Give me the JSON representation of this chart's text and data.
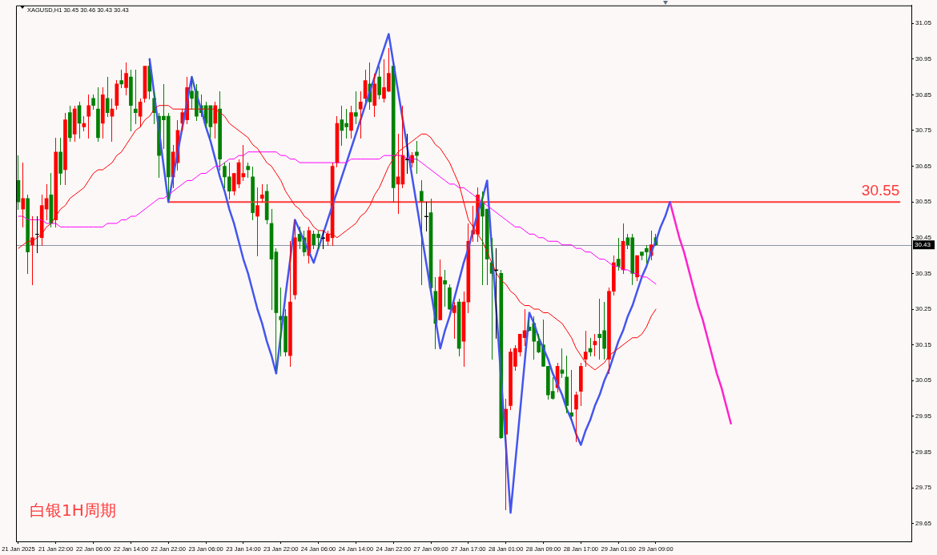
{
  "chart_data": {
    "type": "candlestick",
    "title": "XAGUSD,H1 30.45 30.46 30.43 30.43",
    "annotations": [
      "白银1H周期"
    ],
    "categories": [
      "21 Jan 2025",
      null,
      null,
      null,
      null,
      null,
      null,
      null,
      "21 Jan 22:00",
      null,
      null,
      null,
      null,
      null,
      null,
      null,
      "22 Jan 06:00",
      null,
      null,
      null,
      null,
      null,
      null,
      null,
      "22 Jan 14:00",
      null,
      null,
      null,
      null,
      null,
      null,
      null,
      "22 Jan 22:00",
      null,
      null,
      null,
      null,
      null,
      null,
      null,
      "23 Jan 06:00",
      null,
      null,
      null,
      null,
      null,
      null,
      null,
      "23 Jan 14:00",
      null,
      null,
      null,
      null,
      null,
      null,
      null,
      "23 Jan 22:00",
      null,
      null,
      null,
      null,
      null,
      null,
      null,
      "24 Jan 06:00",
      null,
      null,
      null,
      null,
      null,
      null,
      null,
      "24 Jan 14:00",
      null,
      null,
      null,
      null,
      null,
      null,
      null,
      "24 Jan 22:00",
      null,
      null,
      null,
      null,
      null,
      null,
      null,
      "27 Jan 09:00",
      null,
      null,
      null,
      null,
      null,
      null,
      null,
      "27 Jan 17:00",
      null,
      null,
      null,
      null,
      null,
      null,
      null,
      "28 Jan 01:00",
      null,
      null,
      null,
      null,
      null,
      null,
      null,
      "28 Jan 09:00",
      null,
      null,
      null,
      null,
      null,
      null,
      null,
      "28 Jan 17:00",
      null,
      null,
      null,
      null,
      null,
      null,
      null,
      "29 Jan 01:00",
      null,
      null,
      null,
      null,
      null,
      null,
      null,
      "29 Jan 09:00",
      null,
      null,
      null,
      null,
      null,
      null,
      null,
      null,
      null,
      null,
      null,
      null,
      null,
      null,
      null,
      null,
      null,
      null,
      null,
      null,
      null,
      null,
      null,
      null,
      null,
      null,
      null,
      null,
      null,
      null,
      null,
      null,
      null,
      null,
      null,
      null,
      null,
      null,
      null,
      null,
      null,
      null,
      null,
      null,
      null,
      null,
      null,
      null,
      null,
      null,
      null,
      null,
      null,
      null
    ],
    "ohlc": [
      [
        30.61,
        30.68,
        30.53,
        30.55
      ],
      [
        30.53,
        30.66,
        30.48,
        30.56
      ],
      [
        30.56,
        30.57,
        30.35,
        30.41
      ],
      [
        30.43,
        30.51,
        30.32,
        30.45
      ],
      [
        30.46,
        30.51,
        30.41,
        30.46
      ],
      [
        30.45,
        30.57,
        30.43,
        30.54
      ],
      [
        30.53,
        30.6,
        30.5,
        30.56
      ],
      [
        30.57,
        30.63,
        30.48,
        30.49
      ],
      [
        30.5,
        30.73,
        30.48,
        30.69
      ],
      [
        30.69,
        30.73,
        30.6,
        30.63
      ],
      [
        30.64,
        30.8,
        30.6,
        30.78
      ],
      [
        30.8,
        30.82,
        30.72,
        30.73
      ],
      [
        30.74,
        30.82,
        30.72,
        30.81
      ],
      [
        30.82,
        30.83,
        30.73,
        30.77
      ],
      [
        30.76,
        30.79,
        30.75,
        30.77
      ],
      [
        30.79,
        30.85,
        30.73,
        30.82
      ],
      [
        30.84,
        30.85,
        30.81,
        30.82
      ],
      [
        30.81,
        30.87,
        30.72,
        30.73
      ],
      [
        30.77,
        30.87,
        30.73,
        30.85
      ],
      [
        30.84,
        30.9,
        30.79,
        30.8
      ],
      [
        30.79,
        30.84,
        30.72,
        30.81
      ],
      [
        30.82,
        30.89,
        30.81,
        30.88
      ],
      [
        30.89,
        30.92,
        30.87,
        30.88
      ],
      [
        30.87,
        30.94,
        30.85,
        30.91
      ],
      [
        30.9,
        30.92,
        30.75,
        30.82
      ],
      [
        30.81,
        30.92,
        30.77,
        30.8
      ],
      [
        30.79,
        30.84,
        30.76,
        30.83
      ],
      [
        30.84,
        30.93,
        30.83,
        30.93
      ],
      [
        30.93,
        30.95,
        30.84,
        30.86
      ],
      [
        30.84,
        30.86,
        30.77,
        30.8
      ],
      [
        30.79,
        30.8,
        30.62,
        30.68
      ],
      [
        30.79,
        30.88,
        30.7,
        30.78
      ],
      [
        30.79,
        30.8,
        30.56,
        30.62
      ],
      [
        30.62,
        30.71,
        30.59,
        30.69
      ],
      [
        30.66,
        30.78,
        30.64,
        30.75
      ],
      [
        30.77,
        30.81,
        30.75,
        30.8
      ],
      [
        30.78,
        30.9,
        30.77,
        30.87
      ],
      [
        30.86,
        30.9,
        30.81,
        30.84
      ],
      [
        30.86,
        30.88,
        30.78,
        30.79
      ],
      [
        30.82,
        30.85,
        30.79,
        30.8
      ],
      [
        30.82,
        30.83,
        30.76,
        30.77
      ],
      [
        30.82,
        30.82,
        30.73,
        30.76
      ],
      [
        30.77,
        30.83,
        30.73,
        30.82
      ],
      [
        30.81,
        30.86,
        30.64,
        30.67
      ],
      [
        30.65,
        30.66,
        30.59,
        30.62
      ],
      [
        30.62,
        30.66,
        30.56,
        30.58
      ],
      [
        30.58,
        30.63,
        30.57,
        30.63
      ],
      [
        30.6,
        30.67,
        30.59,
        30.66
      ],
      [
        30.62,
        30.71,
        30.61,
        30.63
      ],
      [
        30.65,
        30.66,
        30.62,
        30.64
      ],
      [
        30.62,
        30.65,
        30.5,
        30.52
      ],
      [
        30.51,
        30.59,
        30.4,
        30.54
      ],
      [
        30.56,
        30.6,
        30.55,
        30.57
      ],
      [
        30.58,
        30.6,
        30.49,
        30.5
      ],
      [
        30.49,
        30.53,
        30.25,
        30.39
      ],
      [
        30.41,
        30.42,
        30.08,
        30.24
      ],
      [
        30.23,
        30.31,
        30.12,
        30.22
      ],
      [
        30.23,
        30.25,
        30.12,
        30.13
      ],
      [
        30.12,
        30.44,
        30.09,
        30.27
      ],
      [
        30.29,
        30.5,
        30.28,
        30.45
      ],
      [
        30.46,
        30.48,
        30.42,
        30.44
      ],
      [
        30.45,
        30.47,
        30.4,
        30.41
      ],
      [
        30.4,
        30.48,
        30.38,
        30.47
      ],
      [
        30.46,
        30.47,
        30.42,
        30.43
      ],
      [
        30.46,
        30.47,
        30.42,
        30.45
      ],
      [
        30.45,
        30.47,
        30.42,
        30.45
      ],
      [
        30.44,
        30.47,
        30.43,
        30.46
      ],
      [
        30.45,
        30.66,
        30.43,
        30.65
      ],
      [
        30.66,
        30.79,
        30.65,
        30.77
      ],
      [
        30.78,
        30.82,
        30.71,
        30.75
      ],
      [
        30.77,
        30.81,
        30.73,
        30.76
      ],
      [
        30.75,
        30.82,
        30.73,
        30.8
      ],
      [
        30.8,
        30.86,
        30.77,
        30.79
      ],
      [
        30.81,
        30.86,
        30.73,
        30.83
      ],
      [
        30.84,
        30.92,
        30.83,
        30.89
      ],
      [
        30.88,
        30.94,
        30.81,
        30.83
      ],
      [
        30.82,
        30.91,
        30.79,
        30.88
      ],
      [
        30.9,
        30.93,
        30.84,
        30.85
      ],
      [
        30.84,
        30.95,
        30.83,
        30.87
      ],
      [
        30.86,
        30.98,
        30.86,
        30.91
      ],
      [
        30.93,
        30.94,
        30.55,
        30.59
      ],
      [
        30.6,
        30.74,
        30.52,
        30.62
      ],
      [
        30.6,
        30.82,
        30.59,
        30.68
      ],
      [
        30.67,
        30.74,
        30.63,
        30.67
      ],
      [
        30.66,
        30.69,
        30.65,
        30.68
      ],
      [
        30.69,
        30.72,
        30.63,
        30.68
      ],
      [
        30.58,
        30.61,
        30.32,
        30.55
      ],
      [
        30.51,
        30.55,
        30.47,
        30.51
      ],
      [
        30.52,
        30.56,
        30.3,
        30.31
      ],
      [
        30.3,
        30.34,
        30.14,
        30.21
      ],
      [
        30.22,
        30.39,
        30.22,
        30.34
      ],
      [
        30.33,
        30.36,
        30.26,
        30.32
      ],
      [
        30.31,
        30.32,
        30.25,
        30.25
      ],
      [
        30.24,
        30.27,
        30.17,
        30.26
      ],
      [
        30.27,
        30.28,
        30.12,
        30.14
      ],
      [
        30.16,
        30.3,
        30.09,
        30.27
      ],
      [
        30.27,
        30.49,
        30.24,
        30.44
      ],
      [
        30.46,
        30.54,
        30.44,
        30.47
      ],
      [
        30.46,
        30.59,
        30.44,
        30.57
      ],
      [
        30.55,
        30.58,
        30.32,
        30.51
      ],
      [
        30.53,
        30.53,
        30.32,
        30.39
      ],
      [
        30.38,
        30.45,
        30.11,
        30.35
      ],
      [
        30.36,
        30.42,
        30.17,
        30.36
      ],
      [
        30.35,
        30.36,
        29.89,
        29.89
      ],
      [
        29.9,
        30.0,
        29.69,
        29.97
      ],
      [
        29.98,
        30.14,
        29.97,
        30.13
      ],
      [
        30.09,
        30.15,
        30.08,
        30.14
      ],
      [
        30.13,
        30.18,
        30.12,
        30.18
      ],
      [
        30.17,
        30.25,
        30.15,
        30.19
      ],
      [
        30.2,
        30.22,
        30.19,
        30.19
      ],
      [
        30.21,
        30.23,
        30.11,
        30.16
      ],
      [
        30.16,
        30.18,
        30.13,
        30.13
      ],
      [
        30.15,
        30.22,
        30.09,
        30.09
      ],
      [
        30.09,
        30.09,
        30.0,
        30.01
      ],
      [
        30.02,
        30.06,
        30.0,
        30.0
      ],
      [
        30.03,
        30.1,
        30.02,
        30.09
      ],
      [
        30.08,
        30.14,
        30.06,
        30.07
      ],
      [
        30.06,
        30.12,
        29.96,
        29.98
      ],
      [
        29.96,
        30.08,
        29.94,
        29.95
      ],
      [
        29.97,
        30.02,
        29.88,
        30.01
      ],
      [
        30.02,
        30.1,
        29.98,
        30.09
      ],
      [
        30.11,
        30.19,
        30.09,
        30.13
      ],
      [
        30.14,
        30.17,
        30.12,
        30.13
      ],
      [
        30.15,
        30.18,
        30.12,
        30.16
      ],
      [
        30.18,
        30.28,
        30.11,
        30.17
      ],
      [
        30.19,
        30.27,
        30.11,
        30.14
      ],
      [
        30.11,
        30.31,
        30.07,
        30.3
      ],
      [
        30.3,
        30.4,
        30.29,
        30.38
      ],
      [
        30.39,
        30.45,
        30.36,
        30.37
      ],
      [
        30.36,
        30.49,
        30.35,
        30.44
      ],
      [
        30.45,
        30.46,
        30.42,
        30.43
      ],
      [
        30.45,
        30.46,
        30.32,
        30.35
      ],
      [
        30.34,
        30.4,
        30.33,
        30.4
      ],
      [
        30.41,
        30.41,
        30.39,
        30.4
      ],
      [
        30.42,
        30.43,
        30.38,
        30.41
      ],
      [
        30.4,
        30.47,
        30.39,
        30.43
      ],
      [
        30.45,
        30.46,
        30.43,
        30.43
      ],
      null,
      null,
      null,
      null,
      null,
      null,
      null,
      null,
      null,
      null,
      null,
      null,
      null,
      null,
      null,
      null,
      null,
      null,
      null,
      null,
      null,
      null,
      null,
      null,
      null,
      null,
      null,
      null,
      null,
      null,
      null,
      null,
      null,
      null,
      null,
      null,
      null,
      null,
      null,
      null,
      null,
      null,
      null,
      null,
      null,
      null,
      null,
      null,
      null,
      null,
      null,
      null,
      null,
      null
    ],
    "colors": [
      "#008000",
      "#ff0000",
      "#008000",
      "#ff0000",
      "#000000",
      "#ff0000",
      "#ff0000",
      "#008000",
      "#ff0000",
      "#008000",
      "#ff0000",
      "#008000",
      "#ff0000",
      "#008000",
      "#ff0000",
      "#ff0000",
      "#008000",
      "#008000",
      "#ff0000",
      "#008000",
      "#ff0000",
      "#ff0000",
      "#008000",
      "#ff0000",
      "#008000",
      "#008000",
      "#ff0000",
      "#ff0000",
      "#008000",
      "#008000",
      "#008000",
      "#008000",
      "#008000",
      "#ff0000",
      "#ff0000",
      "#ff0000",
      "#ff0000",
      "#008000",
      "#008000",
      "#008000",
      "#008000",
      "#008000",
      "#ff0000",
      "#008000",
      "#008000",
      "#008000",
      "#ff0000",
      "#ff0000",
      "#ff0000",
      "#008000",
      "#008000",
      "#ff0000",
      "#ff0000",
      "#008000",
      "#008000",
      "#008000",
      "#008000",
      "#008000",
      "#ff0000",
      "#ff0000",
      "#008000",
      "#008000",
      "#ff0000",
      "#008000",
      "#008000",
      "#000000",
      "#ff0000",
      "#ff0000",
      "#ff0000",
      "#008000",
      "#008000",
      "#ff0000",
      "#008000",
      "#ff0000",
      "#ff0000",
      "#008000",
      "#ff0000",
      "#008000",
      "#ff0000",
      "#ff0000",
      "#008000",
      "#ff0000",
      "#ff0000",
      "#000000",
      "#ff0000",
      "#008000",
      "#008000",
      "#000000",
      "#008000",
      "#008000",
      "#ff0000",
      "#008000",
      "#008000",
      "#ff0000",
      "#008000",
      "#ff0000",
      "#ff0000",
      "#ff0000",
      "#ff0000",
      "#008000",
      "#008000",
      "#008000",
      "#000000",
      "#008000",
      "#ff0000",
      "#ff0000",
      "#ff0000",
      "#ff0000",
      "#ff0000",
      "#008000",
      "#008000",
      "#008000",
      "#008000",
      "#008000",
      "#008000",
      "#ff0000",
      "#008000",
      "#008000",
      "#008000",
      "#ff0000",
      "#ff0000",
      "#ff0000",
      "#008000",
      "#ff0000",
      "#008000",
      "#008000",
      "#ff0000",
      "#ff0000",
      "#008000",
      "#ff0000",
      "#008000",
      "#008000",
      "#ff0000",
      "#008000",
      "#008000",
      "#ff0000",
      "#008000",
      null,
      null,
      null,
      null,
      null,
      null,
      null,
      null,
      null,
      null,
      null,
      null,
      null,
      null,
      null,
      null,
      null,
      null,
      null,
      null,
      null,
      null,
      null,
      null,
      null,
      null,
      null,
      null,
      null,
      null,
      null,
      null,
      null,
      null,
      null,
      null,
      null,
      null,
      null,
      null,
      null,
      null,
      null,
      null,
      null,
      null,
      null,
      null,
      null,
      null,
      null,
      null,
      null,
      null
    ],
    "ylim": [
      29.6,
      31.1
    ],
    "yticks": [
      29.65,
      29.75,
      29.85,
      29.95,
      30.05,
      30.15,
      30.25,
      30.35,
      30.45,
      30.55,
      30.65,
      30.75,
      30.85,
      30.95,
      31.05
    ],
    "ref_lines": [
      {
        "axis": "y",
        "value": 30.43,
        "label": "30.43",
        "color": "#8a96a3"
      }
    ],
    "series": [
      {
        "type": "line",
        "color": "#ff0000",
        "values": [
          30.42,
          30.43,
          30.44,
          30.44,
          30.45,
          30.46,
          30.48,
          30.49,
          30.51,
          30.53,
          30.54,
          30.56,
          30.57,
          30.58,
          30.59,
          30.61,
          30.63,
          30.64,
          30.64,
          30.65,
          30.66,
          30.68,
          30.69,
          30.71,
          30.73,
          30.75,
          30.76,
          30.78,
          30.79,
          30.81,
          30.82,
          30.82,
          30.82,
          30.81,
          30.81,
          30.81,
          30.81,
          30.81,
          30.81,
          30.81,
          30.81,
          30.81,
          30.81,
          30.8,
          30.79,
          30.77,
          30.76,
          30.75,
          30.74,
          30.73,
          30.71,
          30.7,
          30.68,
          30.66,
          30.65,
          30.63,
          30.61,
          30.58,
          30.56,
          30.54,
          30.53,
          30.51,
          30.5,
          30.48,
          30.47,
          30.47,
          30.46,
          30.46,
          30.45,
          30.46,
          30.47,
          30.48,
          30.49,
          30.51,
          30.52,
          30.54,
          30.57,
          30.59,
          30.62,
          30.65,
          30.67,
          30.69,
          30.7,
          30.71,
          30.72,
          30.73,
          30.74,
          30.74,
          30.73,
          30.71,
          30.7,
          30.68,
          30.66,
          30.63,
          30.6,
          30.55,
          30.5,
          30.48,
          30.46,
          30.44,
          30.41,
          30.38,
          30.35,
          30.33,
          30.32,
          30.3,
          30.29,
          30.27,
          30.26,
          30.26,
          30.25,
          30.25,
          30.24,
          30.24,
          30.23,
          30.22,
          30.21,
          30.19,
          30.17,
          30.14,
          30.12,
          30.1,
          30.09,
          30.08,
          30.09,
          30.1,
          30.12,
          30.13,
          30.14,
          30.15,
          30.16,
          30.17,
          30.17,
          30.18,
          30.2,
          30.23,
          30.25,
          null,
          null,
          null,
          null,
          null,
          null,
          null,
          null,
          null,
          null,
          null,
          null,
          null,
          null,
          null,
          null,
          null,
          null,
          null,
          null,
          null,
          null,
          null,
          null,
          null,
          null,
          null,
          null,
          null,
          null,
          null,
          null,
          null,
          null,
          null,
          null,
          null,
          null,
          null,
          null,
          null,
          null,
          null,
          null,
          null,
          null,
          null,
          null,
          null,
          null,
          null,
          null,
          null,
          null
        ]
      },
      {
        "type": "line",
        "color": "#ff00ff",
        "values": [
          30.51,
          30.51,
          30.5,
          30.5,
          30.5,
          30.5,
          30.49,
          30.49,
          30.49,
          30.48,
          30.48,
          30.48,
          30.48,
          30.48,
          30.48,
          30.48,
          30.48,
          30.48,
          30.48,
          30.49,
          30.49,
          30.49,
          30.5,
          30.5,
          30.51,
          30.51,
          30.52,
          30.53,
          30.54,
          30.55,
          30.56,
          30.56,
          30.57,
          30.58,
          30.59,
          30.6,
          30.61,
          30.61,
          30.62,
          30.63,
          30.63,
          30.64,
          30.65,
          30.65,
          30.66,
          30.67,
          30.67,
          30.68,
          30.68,
          30.69,
          30.69,
          30.69,
          30.69,
          30.69,
          30.69,
          30.69,
          30.68,
          30.68,
          30.67,
          30.67,
          30.66,
          30.66,
          30.66,
          30.66,
          30.66,
          30.66,
          30.66,
          30.66,
          30.66,
          30.66,
          30.66,
          30.67,
          30.67,
          30.67,
          30.67,
          30.67,
          30.67,
          30.67,
          30.68,
          30.68,
          30.68,
          30.68,
          30.68,
          30.67,
          30.67,
          30.67,
          30.66,
          30.65,
          30.64,
          30.63,
          30.62,
          30.61,
          30.6,
          30.6,
          30.59,
          30.59,
          30.58,
          30.57,
          30.56,
          30.55,
          30.54,
          30.53,
          30.52,
          30.51,
          30.5,
          30.49,
          30.48,
          30.48,
          30.47,
          30.46,
          30.46,
          30.45,
          30.45,
          30.44,
          30.44,
          30.44,
          30.43,
          30.43,
          30.43,
          30.42,
          30.42,
          30.41,
          30.41,
          30.4,
          30.39,
          30.39,
          30.38,
          30.37,
          30.37,
          30.36,
          30.36,
          30.35,
          30.35,
          30.34,
          30.34,
          30.33,
          30.32,
          null,
          null,
          null,
          null,
          null,
          null,
          null,
          null,
          null,
          null,
          null,
          null,
          null,
          null,
          null,
          null,
          null,
          null,
          null,
          null,
          null,
          null,
          null,
          null,
          null,
          null,
          null,
          null,
          null,
          null,
          null,
          null,
          null,
          null,
          null,
          null,
          null,
          null,
          null,
          null,
          null,
          null,
          null,
          null,
          null,
          null,
          null,
          null,
          null,
          null,
          null,
          null,
          null,
          null
        ]
      },
      {
        "type": "line",
        "color": "#4455ee",
        "values": [
          null,
          null,
          null,
          null,
          null,
          null,
          null,
          null,
          null,
          null,
          null,
          null,
          null,
          null,
          null,
          null,
          null,
          null,
          null,
          null,
          null,
          null,
          null,
          null,
          null,
          null,
          null,
          null,
          30.95,
          30.85,
          30.75,
          30.65,
          30.55,
          30.62,
          30.69,
          30.76,
          30.83,
          30.9,
          30.85,
          30.81,
          30.76,
          30.72,
          30.67,
          30.62,
          30.58,
          30.53,
          30.49,
          30.44,
          30.39,
          30.35,
          30.3,
          30.25,
          30.21,
          30.16,
          30.12,
          30.07,
          30.18,
          30.29,
          30.39,
          30.5,
          30.47,
          30.44,
          30.41,
          30.38,
          30.42,
          30.46,
          30.5,
          30.54,
          30.58,
          30.62,
          30.66,
          30.7,
          30.74,
          30.78,
          30.82,
          30.86,
          30.9,
          30.94,
          30.98,
          31.02,
          30.94,
          30.86,
          30.78,
          30.7,
          30.62,
          30.54,
          30.46,
          30.38,
          30.3,
          30.22,
          30.14,
          30.19,
          30.23,
          30.28,
          30.33,
          30.38,
          30.42,
          30.47,
          30.52,
          30.56,
          30.61,
          30.42,
          30.24,
          30.05,
          29.87,
          29.68,
          29.82,
          29.96,
          30.1,
          30.24,
          30.21,
          30.17,
          30.14,
          30.11,
          30.07,
          30.04,
          30.01,
          29.97,
          29.94,
          29.9,
          29.87,
          29.91,
          29.94,
          29.98,
          30.01,
          30.05,
          30.08,
          30.12,
          30.16,
          30.19,
          30.23,
          30.26,
          30.3,
          30.34,
          30.37,
          30.41,
          30.44,
          30.48,
          30.51,
          30.55,
          null,
          null,
          null,
          null,
          null,
          null,
          null,
          null,
          null,
          null,
          null,
          null,
          null,
          null,
          null,
          null,
          null,
          null,
          null,
          null,
          null,
          null,
          null,
          null,
          null,
          null,
          null,
          null,
          null,
          null,
          null,
          null,
          null,
          null,
          null,
          null,
          null,
          null,
          null,
          null,
          null,
          null,
          null,
          null,
          null,
          null,
          null,
          null,
          null,
          null,
          null
        ]
      },
      {
        "type": "line",
        "color": "#ff22cc",
        "values": [
          null,
          null,
          null,
          null,
          null,
          null,
          null,
          null,
          null,
          null,
          null,
          null,
          null,
          null,
          null,
          null,
          null,
          null,
          null,
          null,
          null,
          null,
          null,
          null,
          null,
          null,
          null,
          null,
          null,
          null,
          null,
          null,
          null,
          null,
          null,
          null,
          null,
          null,
          null,
          null,
          null,
          null,
          null,
          null,
          null,
          null,
          null,
          null,
          null,
          null,
          null,
          null,
          null,
          null,
          null,
          null,
          null,
          null,
          null,
          null,
          null,
          null,
          null,
          null,
          null,
          null,
          null,
          null,
          null,
          null,
          null,
          null,
          null,
          null,
          null,
          null,
          null,
          null,
          null,
          null,
          null,
          null,
          null,
          null,
          null,
          null,
          null,
          null,
          null,
          null,
          null,
          null,
          null,
          null,
          null,
          null,
          null,
          null,
          null,
          null,
          null,
          null,
          null,
          null,
          null,
          null,
          null,
          null,
          null,
          null,
          null,
          null,
          null,
          null,
          null,
          null,
          null,
          null,
          null,
          null,
          null,
          null,
          null,
          null,
          null,
          null,
          null,
          null,
          null,
          null,
          null,
          null,
          null,
          null,
          null,
          null,
          null,
          null,
          null,
          30.55,
          30.5,
          30.45,
          30.41,
          30.36,
          30.31,
          30.26,
          30.22,
          30.17,
          30.12,
          30.07,
          30.03,
          29.98,
          29.93,
          null,
          null,
          null,
          null,
          null,
          null,
          null,
          null,
          null,
          null,
          null,
          null,
          null,
          null,
          null,
          null,
          null,
          null,
          null,
          null,
          null,
          null,
          null,
          null,
          null,
          null,
          null,
          null,
          null,
          null,
          null,
          null,
          null,
          null,
          null,
          null,
          null,
          null
        ]
      },
      {
        "type": "line",
        "name": "30.55",
        "color": "#ff3838",
        "values": [
          null,
          null,
          null,
          null,
          null,
          null,
          null,
          null,
          null,
          null,
          null,
          null,
          null,
          null,
          null,
          null,
          null,
          null,
          null,
          null,
          null,
          null,
          null,
          null,
          null,
          null,
          null,
          null,
          null,
          null,
          null,
          null,
          30.55,
          30.55,
          30.55,
          30.55,
          30.55,
          30.55,
          30.55,
          30.55,
          30.55,
          30.55,
          30.55,
          30.55,
          30.55,
          30.55,
          30.55,
          30.55,
          30.55,
          30.55,
          30.55,
          30.55,
          30.55,
          30.55,
          30.55,
          30.55,
          30.55,
          30.55,
          30.55,
          30.55,
          30.55,
          30.55,
          30.55,
          30.55,
          30.55,
          30.55,
          30.55,
          30.55,
          30.55,
          30.55,
          30.55,
          30.55,
          30.55,
          30.55,
          30.55,
          30.55,
          30.55,
          30.55,
          30.55,
          30.55,
          30.55,
          30.55,
          30.55,
          30.55,
          30.55,
          30.55,
          30.55,
          30.55,
          30.55,
          30.55,
          30.55,
          30.55,
          30.55,
          30.55,
          30.55,
          30.55,
          30.55,
          30.55,
          30.55,
          30.55,
          30.55,
          30.55,
          30.55,
          30.55,
          30.55,
          30.55,
          30.55,
          30.55,
          30.55,
          30.55,
          30.55,
          30.55,
          30.55,
          30.55,
          30.55,
          30.55,
          30.55,
          30.55,
          30.55,
          30.55,
          30.55,
          30.55,
          30.55,
          30.55,
          30.55,
          30.55,
          30.55,
          30.55,
          30.55,
          30.55,
          30.55,
          30.55,
          30.55,
          30.55,
          30.55,
          30.55,
          30.55,
          30.55,
          30.55,
          30.55,
          30.55,
          30.55,
          30.55,
          30.55,
          30.55,
          30.55,
          30.55,
          30.55,
          30.55,
          30.55,
          30.55,
          30.55,
          30.55,
          30.55,
          30.55,
          30.55,
          30.55,
          30.55,
          30.55,
          30.55,
          30.55,
          30.55,
          30.55,
          30.55,
          30.55,
          30.55,
          30.55,
          30.55,
          30.55,
          30.55,
          30.55,
          30.55,
          30.55,
          30.55,
          30.55,
          30.55,
          30.55,
          30.55,
          30.55,
          30.55,
          30.55,
          30.55,
          30.55,
          30.55,
          30.55,
          30.55,
          30.55,
          30.55,
          30.55,
          null,
          null
        ]
      }
    ]
  }
}
